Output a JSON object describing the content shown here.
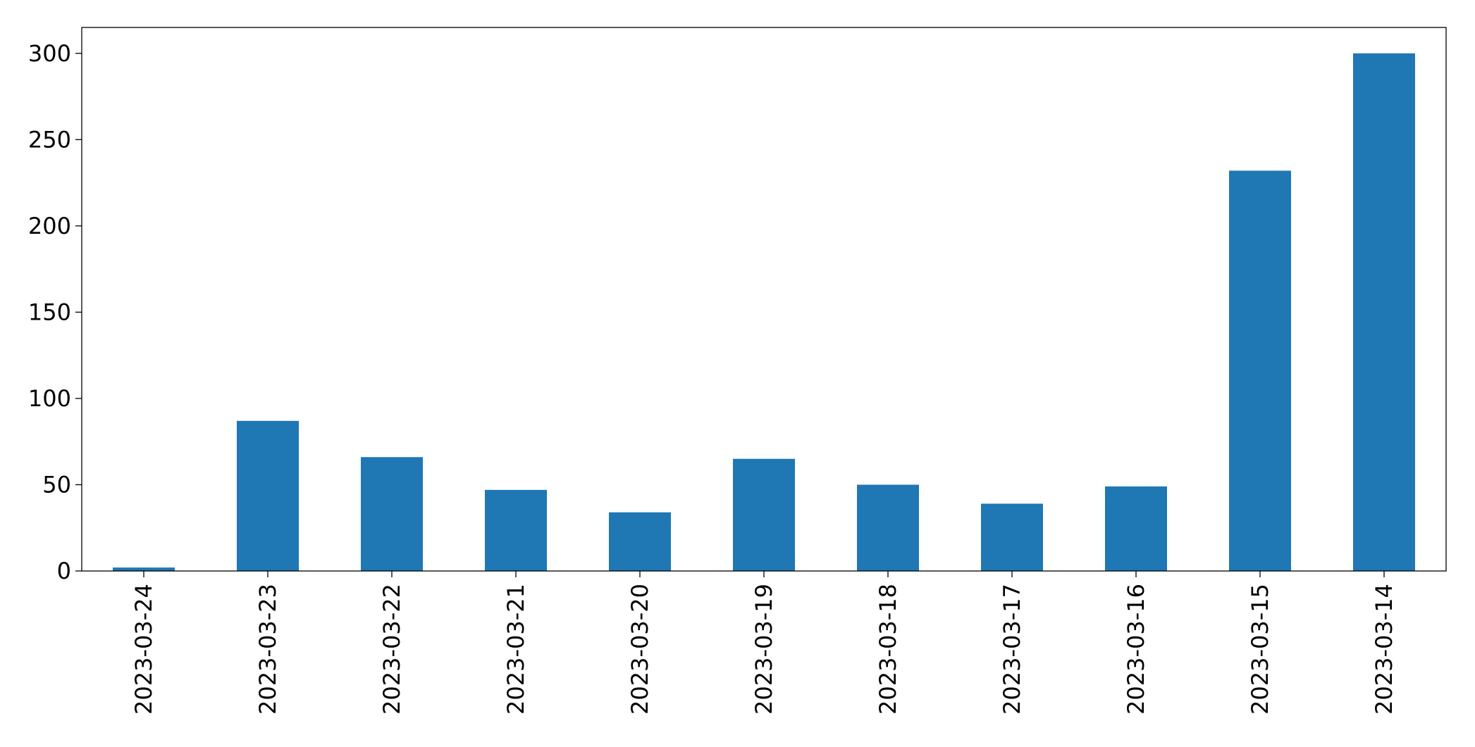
{
  "chart_data": {
    "type": "bar",
    "title": "",
    "xlabel": "",
    "ylabel": "",
    "categories": [
      "2023-03-24",
      "2023-03-23",
      "2023-03-22",
      "2023-03-21",
      "2023-03-20",
      "2023-03-19",
      "2023-03-18",
      "2023-03-17",
      "2023-03-16",
      "2023-03-15",
      "2023-03-14"
    ],
    "values": [
      2,
      87,
      66,
      47,
      34,
      65,
      50,
      39,
      49,
      232,
      300
    ],
    "ylim": [
      0,
      315
    ],
    "yticks": [
      0,
      50,
      100,
      150,
      200,
      250,
      300
    ],
    "bar_color": "#1f77b4",
    "grid": false,
    "legend": "none"
  }
}
